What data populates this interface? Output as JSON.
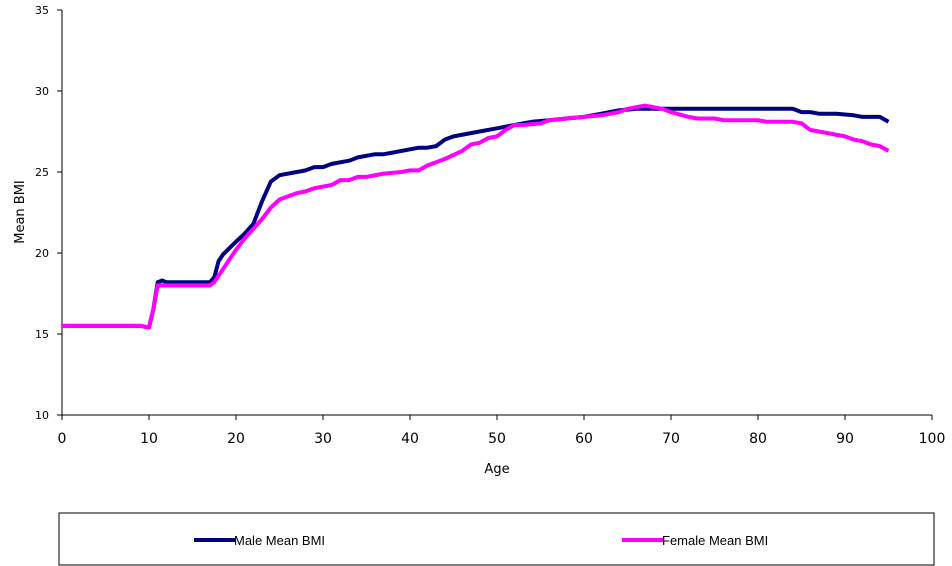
{
  "chart_data": {
    "type": "line",
    "xlabel": "Age",
    "ylabel": "Mean  BMI",
    "xlim": [
      0,
      100
    ],
    "ylim": [
      10,
      35
    ],
    "xticks": [
      0,
      10,
      20,
      30,
      40,
      50,
      60,
      70,
      80,
      90,
      100
    ],
    "yticks": [
      10,
      15,
      20,
      25,
      30,
      35
    ],
    "grid": false,
    "legend_position": "bottom",
    "series": [
      {
        "name": "Male Mean BMI",
        "color": "#000080",
        "points": [
          [
            0,
            15.5
          ],
          [
            9,
            15.5
          ],
          [
            10,
            15.4
          ],
          [
            10.5,
            16.5
          ],
          [
            11,
            18.2
          ],
          [
            11.5,
            18.3
          ],
          [
            12,
            18.2
          ],
          [
            16,
            18.2
          ],
          [
            17,
            18.2
          ],
          [
            17.5,
            18.5
          ],
          [
            18,
            19.5
          ],
          [
            18.5,
            19.9
          ],
          [
            20,
            20.7
          ],
          [
            21,
            21.2
          ],
          [
            22,
            21.8
          ],
          [
            23,
            23.2
          ],
          [
            24,
            24.4
          ],
          [
            25,
            24.8
          ],
          [
            27,
            25.0
          ],
          [
            28,
            25.1
          ],
          [
            29,
            25.3
          ],
          [
            30,
            25.3
          ],
          [
            31,
            25.5
          ],
          [
            33,
            25.7
          ],
          [
            34,
            25.9
          ],
          [
            36,
            26.1
          ],
          [
            37,
            26.1
          ],
          [
            38,
            26.2
          ],
          [
            41,
            26.5
          ],
          [
            42,
            26.5
          ],
          [
            43,
            26.6
          ],
          [
            44,
            27.0
          ],
          [
            45,
            27.2
          ],
          [
            48,
            27.5
          ],
          [
            50,
            27.7
          ],
          [
            52,
            27.9
          ],
          [
            54,
            28.1
          ],
          [
            56,
            28.2
          ],
          [
            58,
            28.3
          ],
          [
            60,
            28.4
          ],
          [
            62,
            28.6
          ],
          [
            64,
            28.8
          ],
          [
            66,
            28.9
          ],
          [
            68,
            28.9
          ],
          [
            70,
            28.9
          ],
          [
            75,
            28.9
          ],
          [
            80,
            28.9
          ],
          [
            84,
            28.9
          ],
          [
            85,
            28.7
          ],
          [
            86,
            28.7
          ],
          [
            87,
            28.6
          ],
          [
            89,
            28.6
          ],
          [
            91,
            28.5
          ],
          [
            92,
            28.4
          ],
          [
            93,
            28.4
          ],
          [
            94,
            28.4
          ],
          [
            95,
            28.1
          ]
        ]
      },
      {
        "name": "Female Mean BMI",
        "color": "#FF00FF",
        "points": [
          [
            0,
            15.5
          ],
          [
            9,
            15.5
          ],
          [
            10,
            15.4
          ],
          [
            10.5,
            16.5
          ],
          [
            11,
            18.0
          ],
          [
            12,
            18.0
          ],
          [
            16,
            18.0
          ],
          [
            17,
            18.0
          ],
          [
            17.5,
            18.2
          ],
          [
            18,
            18.6
          ],
          [
            19,
            19.4
          ],
          [
            20,
            20.2
          ],
          [
            21,
            20.9
          ],
          [
            22,
            21.5
          ],
          [
            23,
            22.1
          ],
          [
            24,
            22.8
          ],
          [
            25,
            23.3
          ],
          [
            26,
            23.5
          ],
          [
            27,
            23.7
          ],
          [
            28,
            23.8
          ],
          [
            29,
            24.0
          ],
          [
            31,
            24.2
          ],
          [
            32,
            24.5
          ],
          [
            33,
            24.5
          ],
          [
            34,
            24.7
          ],
          [
            35,
            24.7
          ],
          [
            37,
            24.9
          ],
          [
            39,
            25.0
          ],
          [
            40,
            25.1
          ],
          [
            41,
            25.1
          ],
          [
            42,
            25.4
          ],
          [
            44,
            25.8
          ],
          [
            46,
            26.3
          ],
          [
            47,
            26.7
          ],
          [
            48,
            26.8
          ],
          [
            49,
            27.1
          ],
          [
            50,
            27.2
          ],
          [
            51,
            27.6
          ],
          [
            52,
            27.9
          ],
          [
            53,
            27.9
          ],
          [
            55,
            28.0
          ],
          [
            56,
            28.2
          ],
          [
            58,
            28.3
          ],
          [
            60,
            28.4
          ],
          [
            62,
            28.5
          ],
          [
            64,
            28.7
          ],
          [
            65,
            28.9
          ],
          [
            67,
            29.1
          ],
          [
            68,
            29.0
          ],
          [
            69,
            28.9
          ],
          [
            70,
            28.7
          ],
          [
            72,
            28.4
          ],
          [
            73,
            28.3
          ],
          [
            75,
            28.3
          ],
          [
            76,
            28.2
          ],
          [
            80,
            28.2
          ],
          [
            81,
            28.1
          ],
          [
            84,
            28.1
          ],
          [
            85,
            28.0
          ],
          [
            86,
            27.6
          ],
          [
            88,
            27.4
          ],
          [
            90,
            27.2
          ],
          [
            91,
            27.0
          ],
          [
            92,
            26.9
          ],
          [
            93,
            26.7
          ],
          [
            94,
            26.6
          ],
          [
            95,
            26.3
          ]
        ]
      }
    ]
  }
}
